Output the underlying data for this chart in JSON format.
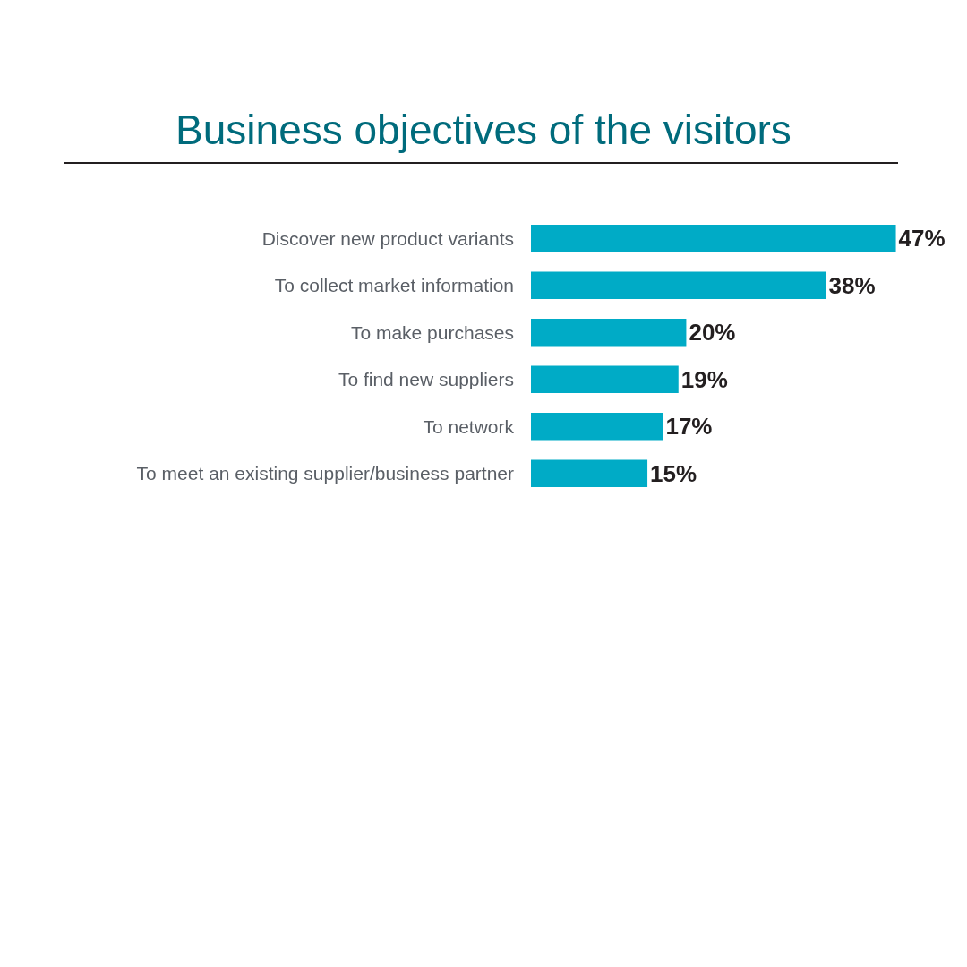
{
  "chart_data": {
    "type": "bar",
    "orientation": "horizontal",
    "title": "Business objectives of the visitors",
    "categories": [
      "Discover new product variants",
      "To collect market information",
      "To make purchases",
      "To find new suppliers",
      "To network",
      "To meet an existing supplier/business partner"
    ],
    "values": [
      47,
      38,
      20,
      19,
      17,
      15
    ],
    "value_labels": [
      "47%",
      "38%",
      "20%",
      "19%",
      "17%",
      "15%"
    ],
    "color": "#00abc6",
    "tick_labels": "y"
  }
}
